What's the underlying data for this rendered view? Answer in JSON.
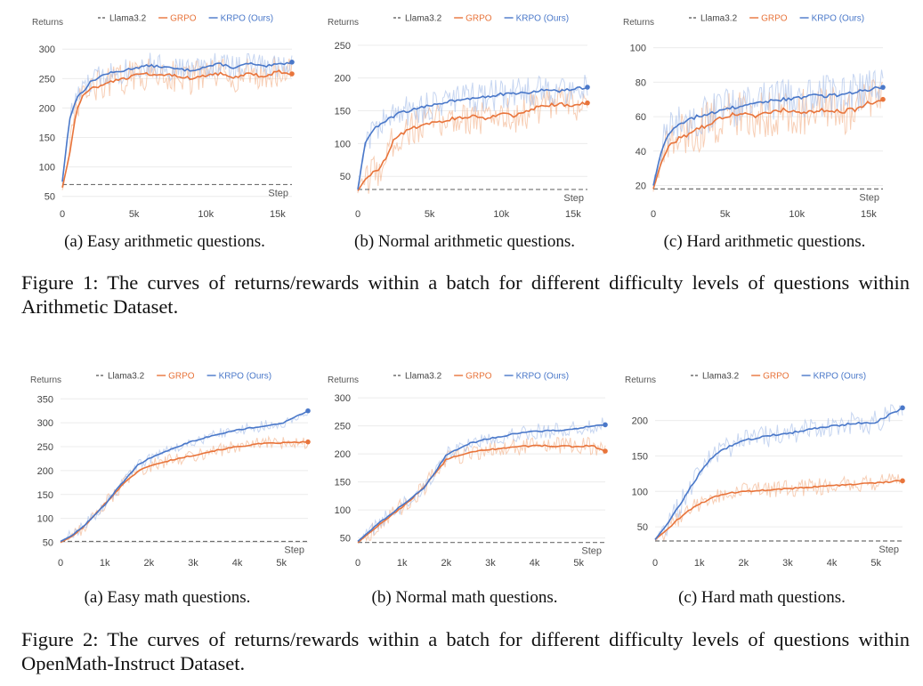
{
  "colors": {
    "llama": "#6f6f6f",
    "grpo": "#e8743b",
    "krpo": "#4a78c9",
    "grpo_light": "#f2b48e",
    "krpo_light": "#a9c0ea"
  },
  "legend_labels": [
    "Llama3.2",
    "GRPO",
    "KRPO (Ours)"
  ],
  "fig1_caption": "Figure 1: The curves of returns/rewards within a batch for different difficulty levels of questions within Arithmetic Dataset.",
  "fig2_caption": "Figure 2: The curves of returns/rewards within a batch for different difficulty levels of questions within OpenMath-Instruct Dataset.",
  "chart_data": [
    {
      "id": "fig1a",
      "type": "line",
      "caption": "(a) Easy arithmetic questions.",
      "ylabel": "Returns",
      "xlabel": "Step",
      "ylim": [
        45,
        320
      ],
      "xlim": [
        0,
        16000
      ],
      "yticks": [
        50,
        100,
        150,
        200,
        250,
        300
      ],
      "xticks": [
        0,
        5000,
        10000,
        15000
      ],
      "xtick_labels": [
        "0",
        "5k",
        "10k",
        "15k"
      ],
      "legend": "top",
      "series": [
        {
          "name": "Llama3.2",
          "style": "dashed",
          "x": [
            0,
            16000
          ],
          "y": [
            70,
            70
          ]
        },
        {
          "name": "GRPO",
          "noise": 28,
          "x": [
            0,
            500,
            1000,
            1500,
            2000,
            3000,
            4000,
            5000,
            6000,
            7000,
            8000,
            9000,
            10000,
            11000,
            12000,
            13000,
            14000,
            15000,
            16000
          ],
          "y": [
            65,
            120,
            200,
            222,
            232,
            242,
            248,
            255,
            258,
            258,
            255,
            250,
            256,
            258,
            252,
            260,
            252,
            262,
            258
          ]
        },
        {
          "name": "KRPO (Ours)",
          "noise": 22,
          "x": [
            0,
            500,
            1000,
            1500,
            2000,
            3000,
            4000,
            5000,
            6000,
            7000,
            8000,
            9000,
            10000,
            11000,
            12000,
            13000,
            14000,
            15000,
            16000
          ],
          "y": [
            75,
            180,
            218,
            230,
            245,
            258,
            262,
            268,
            272,
            270,
            266,
            264,
            270,
            275,
            268,
            276,
            270,
            274,
            278
          ]
        }
      ]
    },
    {
      "id": "fig1b",
      "type": "line",
      "caption": "(b) Normal arithmetic questions.",
      "ylabel": "Returns",
      "xlabel": "Step",
      "ylim": [
        15,
        262
      ],
      "xlim": [
        0,
        16000
      ],
      "yticks": [
        50,
        100,
        150,
        200,
        250
      ],
      "xticks": [
        0,
        5000,
        10000,
        15000
      ],
      "xtick_labels": [
        "0",
        "5k",
        "10k",
        "15k"
      ],
      "legend": "top",
      "series": [
        {
          "name": "Llama3.2",
          "style": "dashed",
          "x": [
            0,
            16000
          ],
          "y": [
            30,
            30
          ]
        },
        {
          "name": "GRPO",
          "noise": 28,
          "x": [
            0,
            500,
            1000,
            1500,
            2000,
            2500,
            3000,
            4000,
            5000,
            6000,
            7000,
            8000,
            9000,
            10000,
            11000,
            12000,
            13000,
            14000,
            15000,
            16000
          ],
          "y": [
            28,
            45,
            55,
            62,
            80,
            105,
            115,
            125,
            132,
            135,
            140,
            142,
            138,
            145,
            142,
            152,
            158,
            160,
            158,
            162
          ]
        },
        {
          "name": "KRPO (Ours)",
          "noise": 24,
          "x": [
            0,
            500,
            1000,
            1500,
            2000,
            3000,
            4000,
            5000,
            6000,
            7000,
            8000,
            9000,
            10000,
            11000,
            12000,
            13000,
            14000,
            15000,
            16000
          ],
          "y": [
            30,
            100,
            120,
            128,
            135,
            148,
            152,
            158,
            163,
            167,
            170,
            172,
            175,
            176,
            178,
            182,
            180,
            183,
            186
          ]
        }
      ]
    },
    {
      "id": "fig1c",
      "type": "line",
      "caption": "(c) Hard arithmetic questions.",
      "ylabel": "Returns",
      "xlabel": "Step",
      "ylim": [
        12,
        106
      ],
      "xlim": [
        0,
        16000
      ],
      "yticks": [
        20,
        40,
        60,
        80,
        100
      ],
      "xticks": [
        0,
        5000,
        10000,
        15000
      ],
      "xtick_labels": [
        "0",
        "5k",
        "10k",
        "15k"
      ],
      "legend": "top",
      "series": [
        {
          "name": "Llama3.2",
          "style": "dashed",
          "x": [
            0,
            16000
          ],
          "y": [
            18,
            18
          ]
        },
        {
          "name": "GRPO",
          "noise": 14,
          "x": [
            0,
            500,
            1000,
            1500,
            2000,
            3000,
            4000,
            5000,
            6000,
            7000,
            8000,
            9000,
            10000,
            11000,
            12000,
            13000,
            14000,
            15000,
            16000
          ],
          "y": [
            18,
            32,
            42,
            46,
            48,
            52,
            56,
            60,
            62,
            60,
            62,
            64,
            63,
            62,
            64,
            63,
            64,
            68,
            70
          ]
        },
        {
          "name": "KRPO (Ours)",
          "noise": 12,
          "x": [
            0,
            500,
            1000,
            1500,
            2000,
            3000,
            4000,
            5000,
            6000,
            7000,
            8000,
            9000,
            10000,
            11000,
            12000,
            13000,
            14000,
            15000,
            16000
          ],
          "y": [
            20,
            38,
            50,
            54,
            56,
            60,
            62,
            64,
            66,
            67,
            69,
            70,
            71,
            72,
            72,
            73,
            74,
            76,
            77
          ]
        }
      ]
    },
    {
      "id": "fig2a",
      "type": "line",
      "caption": "(a) Easy math questions.",
      "ylabel": "Returns",
      "xlabel": "Step",
      "ylim": [
        38,
        358
      ],
      "xlim": [
        0,
        5600
      ],
      "yticks": [
        50,
        100,
        150,
        200,
        250,
        300,
        350
      ],
      "xticks": [
        0,
        1000,
        2000,
        3000,
        4000,
        5000
      ],
      "xtick_labels": [
        "0",
        "1k",
        "2k",
        "3k",
        "4k",
        "5k"
      ],
      "legend": "top",
      "series": [
        {
          "name": "Llama3.2",
          "style": "dashed",
          "x": [
            0,
            5600
          ],
          "y": [
            52,
            52
          ]
        },
        {
          "name": "GRPO",
          "noise": 14,
          "x": [
            0,
            250,
            500,
            750,
            1000,
            1250,
            1500,
            1750,
            2000,
            2250,
            2500,
            3000,
            3500,
            4000,
            4500,
            5000,
            5600
          ],
          "y": [
            50,
            62,
            80,
            105,
            130,
            155,
            180,
            198,
            210,
            215,
            222,
            232,
            242,
            250,
            256,
            258,
            260
          ]
        },
        {
          "name": "KRPO (Ours)",
          "noise": 12,
          "x": [
            0,
            250,
            500,
            750,
            1000,
            1250,
            1500,
            1750,
            2000,
            2250,
            2500,
            3000,
            3500,
            4000,
            4500,
            5000,
            5600
          ],
          "y": [
            52,
            64,
            82,
            105,
            128,
            158,
            185,
            212,
            225,
            235,
            245,
            262,
            275,
            285,
            292,
            298,
            325
          ]
        }
      ]
    },
    {
      "id": "fig2b",
      "type": "line",
      "caption": "(b) Normal math questions.",
      "ylabel": "Returns",
      "xlabel": "Step",
      "ylim": [
        32,
        305
      ],
      "xlim": [
        0,
        5600
      ],
      "yticks": [
        50,
        100,
        150,
        200,
        250,
        300
      ],
      "xticks": [
        0,
        1000,
        2000,
        3000,
        4000,
        5000
      ],
      "xtick_labels": [
        "0",
        "1k",
        "2k",
        "3k",
        "4k",
        "5k"
      ],
      "legend": "top",
      "series": [
        {
          "name": "Llama3.2",
          "style": "dashed",
          "x": [
            0,
            5600
          ],
          "y": [
            42,
            42
          ]
        },
        {
          "name": "GRPO",
          "noise": 16,
          "x": [
            0,
            500,
            1000,
            1500,
            1750,
            2000,
            2500,
            3000,
            3500,
            4000,
            4500,
            5000,
            5300,
            5600
          ],
          "y": [
            42,
            75,
            105,
            140,
            165,
            190,
            202,
            208,
            212,
            215,
            214,
            213,
            215,
            205
          ]
        },
        {
          "name": "KRPO (Ours)",
          "noise": 14,
          "x": [
            0,
            500,
            1000,
            1500,
            1750,
            2000,
            2500,
            3000,
            3500,
            4000,
            4500,
            5000,
            5300,
            5600
          ],
          "y": [
            44,
            78,
            108,
            140,
            168,
            198,
            218,
            228,
            235,
            240,
            242,
            245,
            250,
            252
          ]
        }
      ]
    },
    {
      "id": "fig2c",
      "type": "line",
      "caption": "(c) Hard math questions.",
      "ylabel": "Returns",
      "xlabel": "Step",
      "ylim": [
        20,
        236
      ],
      "xlim": [
        0,
        5600
      ],
      "yticks": [
        50,
        100,
        150,
        200
      ],
      "xticks": [
        0,
        1000,
        2000,
        3000,
        4000,
        5000
      ],
      "xtick_labels": [
        "0",
        "1k",
        "2k",
        "3k",
        "4k",
        "5k"
      ],
      "legend": "top",
      "series": [
        {
          "name": "Llama3.2",
          "style": "dashed",
          "x": [
            0,
            5600
          ],
          "y": [
            30,
            30
          ]
        },
        {
          "name": "GRPO",
          "noise": 12,
          "x": [
            0,
            250,
            500,
            750,
            1000,
            1250,
            1500,
            2000,
            2500,
            3000,
            3500,
            4000,
            4500,
            5000,
            5600
          ],
          "y": [
            32,
            45,
            60,
            72,
            82,
            90,
            96,
            100,
            102,
            104,
            106,
            108,
            110,
            112,
            115
          ]
        },
        {
          "name": "KRPO (Ours)",
          "noise": 16,
          "x": [
            0,
            250,
            500,
            750,
            1000,
            1250,
            1500,
            2000,
            2500,
            3000,
            3500,
            4000,
            4500,
            5000,
            5600
          ],
          "y": [
            32,
            52,
            75,
            100,
            125,
            145,
            158,
            172,
            178,
            182,
            188,
            192,
            196,
            198,
            218
          ]
        }
      ]
    }
  ]
}
